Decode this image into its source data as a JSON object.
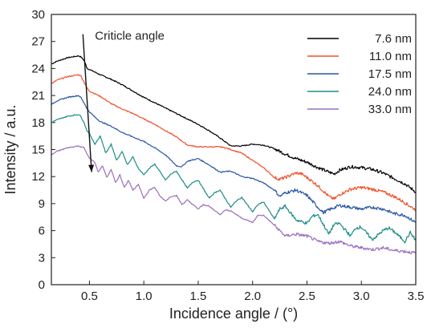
{
  "chart_data": {
    "type": "line",
    "title": "",
    "xlabel": "Incidence angle / (°)",
    "ylabel": "Intensity / a.u.",
    "xlim": [
      0.15,
      3.5
    ],
    "ylim": [
      0,
      30
    ],
    "x_ticks": [
      0.5,
      1.0,
      1.5,
      2.0,
      2.5,
      3.0,
      3.5
    ],
    "x_tick_labels": [
      "0.5",
      "1.0",
      "1.5",
      "2.0",
      "2.5",
      "3.0",
      "3.5"
    ],
    "y_ticks": [
      0,
      3,
      6,
      9,
      12,
      15,
      18,
      21,
      24,
      27,
      30
    ],
    "y_tick_labels": [
      "0",
      "3",
      "6",
      "9",
      "12",
      "15",
      "18",
      "21",
      "24",
      "27",
      "30"
    ],
    "grid": false,
    "legend_position": "top-right",
    "annotations": [
      {
        "text": "Criticle angle",
        "arrow_from": [
          0.44,
          27.8
        ],
        "arrow_to": [
          0.52,
          12.5
        ]
      }
    ],
    "series": [
      {
        "name": "7.6 nm",
        "color": "#000000",
        "x": [
          0.15,
          0.2,
          0.25,
          0.3,
          0.35,
          0.4,
          0.42,
          0.45,
          0.48,
          0.5,
          0.55,
          0.6,
          0.7,
          0.8,
          0.9,
          1.0,
          1.1,
          1.2,
          1.3,
          1.4,
          1.5,
          1.6,
          1.7,
          1.8,
          1.9,
          2.0,
          2.1,
          2.2,
          2.3,
          2.4,
          2.5,
          2.6,
          2.7,
          2.75,
          2.8,
          2.9,
          3.0,
          3.1,
          3.2,
          3.3,
          3.4,
          3.5
        ],
        "y": [
          24.5,
          24.8,
          25.0,
          25.2,
          25.3,
          25.4,
          25.3,
          24.9,
          24.0,
          23.9,
          23.6,
          23.3,
          22.8,
          22.2,
          21.5,
          20.8,
          20.2,
          19.6,
          19.0,
          18.4,
          17.8,
          17.1,
          16.3,
          15.4,
          15.4,
          15.6,
          15.5,
          15.1,
          14.5,
          14.0,
          13.6,
          13.0,
          12.5,
          12.3,
          12.7,
          13.1,
          13.0,
          12.8,
          12.4,
          11.8,
          11.2,
          10.3
        ]
      },
      {
        "name": "11.0 nm",
        "color": "#f0522d",
        "x": [
          0.15,
          0.2,
          0.25,
          0.3,
          0.35,
          0.4,
          0.42,
          0.45,
          0.48,
          0.5,
          0.6,
          0.7,
          0.8,
          0.9,
          1.0,
          1.1,
          1.2,
          1.3,
          1.4,
          1.5,
          1.6,
          1.7,
          1.75,
          1.8,
          1.9,
          2.0,
          2.1,
          2.2,
          2.25,
          2.3,
          2.4,
          2.45,
          2.5,
          2.6,
          2.7,
          2.75,
          2.8,
          2.9,
          3.0,
          3.1,
          3.2,
          3.3,
          3.4,
          3.5
        ],
        "y": [
          22.3,
          22.7,
          22.9,
          23.1,
          23.2,
          23.3,
          23.2,
          22.5,
          21.8,
          21.5,
          20.9,
          20.1,
          19.5,
          19.0,
          18.4,
          17.8,
          17.1,
          16.4,
          15.5,
          15.3,
          15.3,
          15.3,
          15.2,
          15.0,
          14.6,
          13.8,
          13.0,
          11.9,
          11.7,
          11.9,
          12.4,
          12.3,
          11.9,
          11.0,
          9.8,
          9.5,
          10.0,
          10.6,
          10.8,
          10.6,
          10.3,
          9.8,
          9.1,
          8.3
        ]
      },
      {
        "name": "17.5 nm",
        "color": "#2b56a7",
        "x": [
          0.15,
          0.2,
          0.25,
          0.3,
          0.35,
          0.4,
          0.42,
          0.45,
          0.48,
          0.5,
          0.55,
          0.6,
          0.7,
          0.8,
          0.9,
          1.0,
          1.1,
          1.2,
          1.3,
          1.35,
          1.4,
          1.5,
          1.6,
          1.7,
          1.8,
          1.9,
          2.0,
          2.1,
          2.2,
          2.25,
          2.3,
          2.4,
          2.5,
          2.6,
          2.65,
          2.7,
          2.8,
          2.9,
          3.0,
          3.1,
          3.2,
          3.3,
          3.4,
          3.5
        ],
        "y": [
          20.0,
          20.4,
          20.6,
          20.8,
          20.9,
          21.0,
          20.8,
          20.2,
          19.5,
          19.2,
          18.6,
          18.1,
          17.6,
          16.9,
          16.4,
          15.9,
          15.2,
          14.4,
          13.2,
          13.1,
          13.7,
          14.0,
          13.3,
          12.5,
          12.6,
          12.0,
          11.8,
          11.3,
          10.5,
          9.8,
          10.2,
          10.5,
          9.9,
          8.6,
          8.0,
          8.3,
          8.8,
          8.6,
          8.4,
          8.6,
          8.4,
          7.9,
          7.7,
          6.9
        ]
      },
      {
        "name": "24.0 nm",
        "color": "#1d8d86",
        "x": [
          0.15,
          0.2,
          0.25,
          0.3,
          0.35,
          0.4,
          0.42,
          0.45,
          0.48,
          0.5,
          0.55,
          0.6,
          0.65,
          0.7,
          0.75,
          0.8,
          0.85,
          0.9,
          0.95,
          1.0,
          1.05,
          1.1,
          1.15,
          1.2,
          1.25,
          1.3,
          1.4,
          1.45,
          1.5,
          1.6,
          1.65,
          1.7,
          1.8,
          1.85,
          1.9,
          2.0,
          2.05,
          2.1,
          2.2,
          2.25,
          2.3,
          2.4,
          2.5,
          2.55,
          2.6,
          2.7,
          2.75,
          2.8,
          2.9,
          2.95,
          3.0,
          3.1,
          3.2,
          3.25,
          3.3,
          3.4,
          3.45,
          3.5
        ],
        "y": [
          18.0,
          18.3,
          18.5,
          18.7,
          18.8,
          18.9,
          18.7,
          18.0,
          17.0,
          16.8,
          15.6,
          16.5,
          14.6,
          15.6,
          13.8,
          14.8,
          13.3,
          14.2,
          12.9,
          12.2,
          12.9,
          13.4,
          12.5,
          11.6,
          12.3,
          12.6,
          10.7,
          11.4,
          11.6,
          9.6,
          10.2,
          10.5,
          8.6,
          9.3,
          9.7,
          8.1,
          8.9,
          9.2,
          7.3,
          8.4,
          8.7,
          7.2,
          6.8,
          7.6,
          7.8,
          5.6,
          6.7,
          6.8,
          5.4,
          6.3,
          6.4,
          5.0,
          6.0,
          6.3,
          5.9,
          4.8,
          5.8,
          4.9
        ]
      },
      {
        "name": "33.0 nm",
        "color": "#9b6fbf",
        "x": [
          0.15,
          0.2,
          0.25,
          0.3,
          0.35,
          0.4,
          0.45,
          0.5,
          0.55,
          0.58,
          0.62,
          0.66,
          0.7,
          0.74,
          0.78,
          0.82,
          0.86,
          0.9,
          0.95,
          1.0,
          1.05,
          1.1,
          1.15,
          1.2,
          1.25,
          1.3,
          1.35,
          1.4,
          1.5,
          1.55,
          1.6,
          1.7,
          1.75,
          1.8,
          1.9,
          2.0,
          2.05,
          2.1,
          2.2,
          2.3,
          2.4,
          2.5,
          2.6,
          2.7,
          2.8,
          2.9,
          3.0,
          3.1,
          3.2,
          3.3,
          3.4,
          3.5
        ],
        "y": [
          14.4,
          14.8,
          15.0,
          15.2,
          15.3,
          15.4,
          15.2,
          14.0,
          13.6,
          12.5,
          13.2,
          11.9,
          12.8,
          11.3,
          12.2,
          10.8,
          11.6,
          10.5,
          11.1,
          9.6,
          10.5,
          10.8,
          9.8,
          9.3,
          9.8,
          9.9,
          8.9,
          9.4,
          8.4,
          8.9,
          8.7,
          7.8,
          8.3,
          8.2,
          7.4,
          6.9,
          7.7,
          7.7,
          6.6,
          5.4,
          5.6,
          5.4,
          4.8,
          4.6,
          4.8,
          4.3,
          4.1,
          3.9,
          4.1,
          3.8,
          3.7,
          3.5
        ]
      }
    ]
  }
}
